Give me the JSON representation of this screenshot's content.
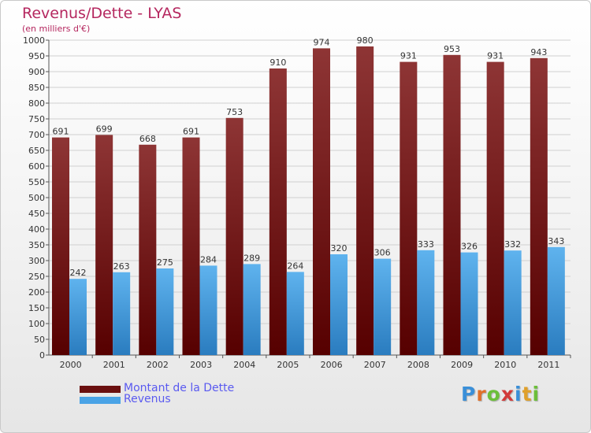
{
  "title": "Revenus/Dette - LYAS",
  "subtitle": "(en milliers d'€)",
  "logo": {
    "text": "Proxiti",
    "letters": [
      {
        "ch": "P",
        "color": "#3a8fd8"
      },
      {
        "ch": "r",
        "color": "#e0702a"
      },
      {
        "ch": "o",
        "color": "#6cbf3a"
      },
      {
        "ch": "x",
        "color": "#d23a3a"
      },
      {
        "ch": "i",
        "color": "#3a8fd8"
      },
      {
        "ch": "t",
        "color": "#e0a02a"
      },
      {
        "ch": "i",
        "color": "#6cbf3a"
      }
    ]
  },
  "chart_data": {
    "type": "bar",
    "categories": [
      "2000",
      "2001",
      "2002",
      "2003",
      "2004",
      "2005",
      "2006",
      "2007",
      "2008",
      "2009",
      "2010",
      "2011"
    ],
    "series": [
      {
        "name": "Montant de la Dette",
        "color": "#7a2020",
        "values": [
          691,
          699,
          668,
          691,
          753,
          910,
          974,
          980,
          931,
          953,
          931,
          943
        ]
      },
      {
        "name": "Revenus",
        "color": "#4aa3e6",
        "values": [
          242,
          263,
          275,
          284,
          289,
          264,
          320,
          306,
          333,
          326,
          332,
          343
        ]
      }
    ],
    "yticks": [
      "0",
      "50",
      "100",
      "150",
      "200",
      "250",
      "300",
      "350",
      "400",
      "450",
      "500",
      "550",
      "600",
      "650",
      "700",
      "750",
      "800",
      "850",
      "900",
      "950",
      "1000"
    ],
    "ylim": [
      0,
      1000
    ],
    "grid": true,
    "legend_position": "bottom-left"
  }
}
